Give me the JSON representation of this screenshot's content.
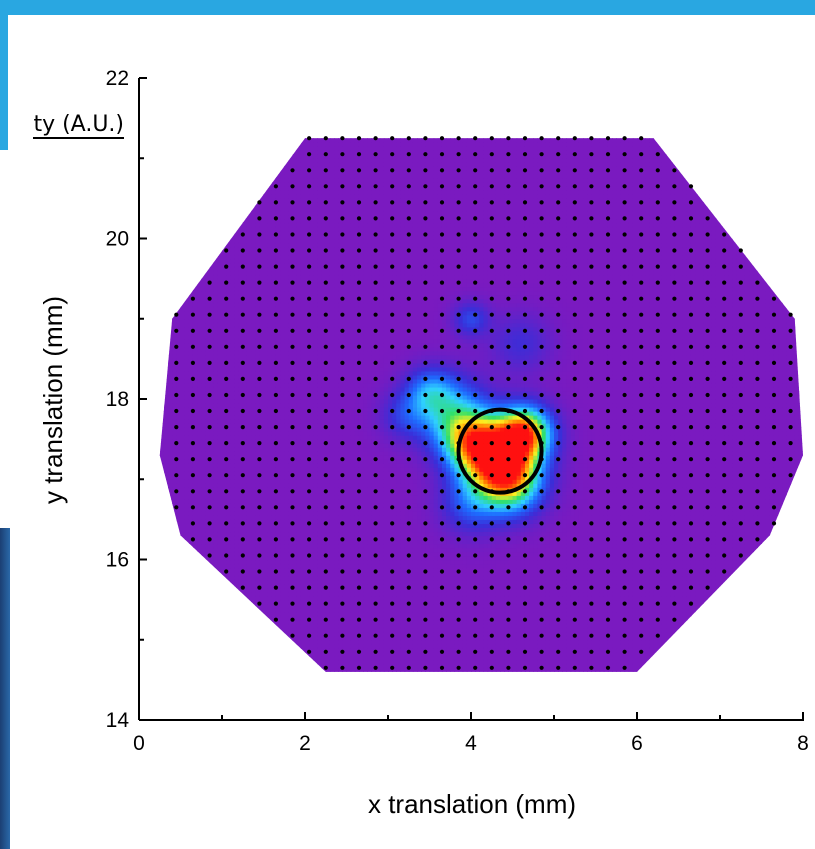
{
  "chart_data": {
    "type": "heatmap",
    "title": "",
    "legend_title": "ty (A.U.)",
    "xlabel": "x translation (mm)",
    "ylabel": "y translation (mm)",
    "xlim": [
      0,
      8
    ],
    "ylim": [
      14,
      22
    ],
    "x_ticks": [
      "0",
      "2",
      "4",
      "6",
      "8"
    ],
    "y_ticks": [
      "14",
      "16",
      "18",
      "20",
      "22"
    ],
    "grid": false,
    "colormap": [
      "#7a1ac0",
      "#3a2ed8",
      "#1e6cff",
      "#2fd0ff",
      "#30e06a",
      "#fff020",
      "#ff8000",
      "#ff1010"
    ],
    "scan_region": [
      [
        2,
        21.25
      ],
      [
        6.2,
        21.25
      ],
      [
        7.9,
        19.0
      ],
      [
        8.0,
        17.3
      ],
      [
        7.6,
        16.3
      ],
      [
        6.0,
        14.6
      ],
      [
        2.25,
        14.6
      ],
      [
        0.5,
        16.3
      ],
      [
        0.25,
        17.3
      ],
      [
        0.4,
        19.0
      ]
    ],
    "scan_step_mm": 0.2,
    "hotspots": [
      {
        "x": 4.35,
        "y": 17.25,
        "intensity": 1.0,
        "sigma": 0.3
      },
      {
        "x": 4.65,
        "y": 17.6,
        "intensity": 0.75,
        "sigma": 0.22
      },
      {
        "x": 4.0,
        "y": 17.5,
        "intensity": 0.55,
        "sigma": 0.25
      },
      {
        "x": 3.75,
        "y": 17.85,
        "intensity": 0.35,
        "sigma": 0.3
      },
      {
        "x": 3.5,
        "y": 18.1,
        "intensity": 0.25,
        "sigma": 0.2
      },
      {
        "x": 4.5,
        "y": 16.9,
        "intensity": 0.4,
        "sigma": 0.25
      },
      {
        "x": 4.0,
        "y": 16.7,
        "intensity": 0.22,
        "sigma": 0.25
      },
      {
        "x": 4.0,
        "y": 19.0,
        "intensity": 0.2,
        "sigma": 0.15
      },
      {
        "x": 4.6,
        "y": 18.7,
        "intensity": 0.13,
        "sigma": 0.25
      },
      {
        "x": 3.2,
        "y": 17.8,
        "intensity": 0.15,
        "sigma": 0.2
      }
    ],
    "circle": {
      "cx": 4.35,
      "cy": 17.35,
      "r": 0.5,
      "color": "#000000"
    }
  }
}
